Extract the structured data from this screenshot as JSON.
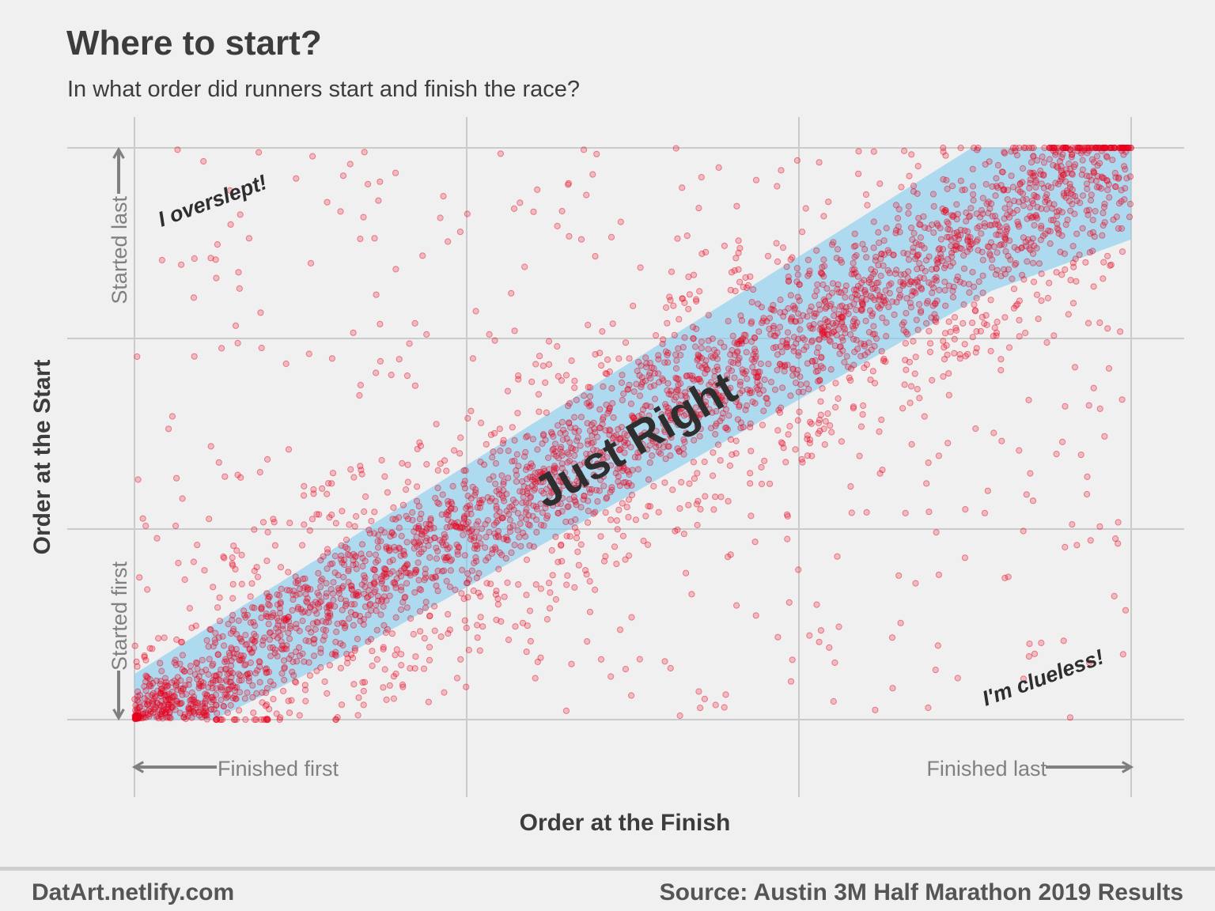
{
  "chart_data": {
    "type": "scatter",
    "title": "Where to start?",
    "subtitle": "In what order did runners start and finish the race?",
    "xlabel": "Order at the Finish",
    "ylabel": "Order at the Start",
    "xlim": [
      0,
      1
    ],
    "ylim": [
      0,
      1
    ],
    "grid": true,
    "point_color": "#e8001c",
    "band_color": "#86cdef",
    "band": {
      "label": "Just Right",
      "polygon": [
        [
          0,
          0
        ],
        [
          0,
          0.08
        ],
        [
          1,
          1
        ],
        [
          1,
          0.84
        ],
        [
          0.86,
          0.78
        ],
        [
          0.22,
          0.12
        ],
        [
          0.08,
          0
        ]
      ]
    },
    "axis_annotations": {
      "x_low": "Finished first",
      "x_high": "Finished last",
      "y_low": "Started first",
      "y_high": "Started last"
    },
    "corner_annotations": {
      "top_left": "I overslept!",
      "bottom_right": "I'm clueless!"
    }
  },
  "footer": {
    "left": "DatArt.netlify.com",
    "right": "Source: Austin 3M Half Marathon 2019 Results"
  }
}
